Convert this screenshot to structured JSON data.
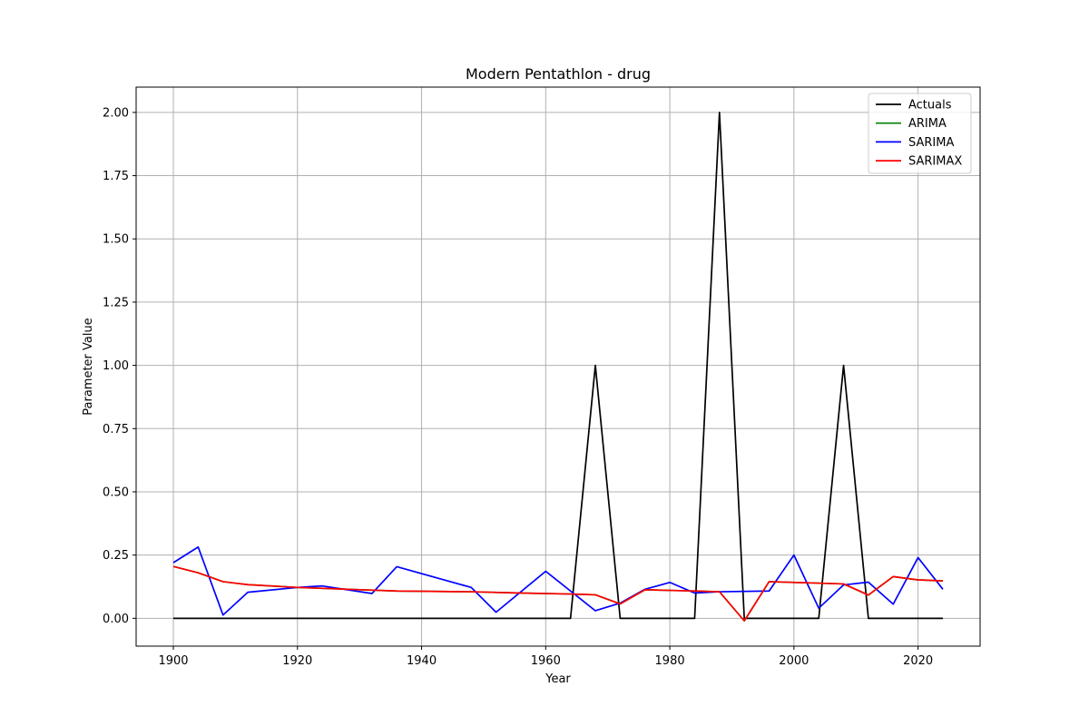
{
  "chart_data": {
    "type": "line",
    "title": "Modern Pentathlon - drug",
    "xlabel": "Year",
    "ylabel": "Parameter Value",
    "xlim": [
      1894,
      2030
    ],
    "ylim": [
      -0.11,
      2.1
    ],
    "xticks": [
      1900,
      1920,
      1940,
      1960,
      1980,
      2000,
      2020
    ],
    "yticks": [
      0.0,
      0.25,
      0.5,
      0.75,
      1.0,
      1.25,
      1.5,
      1.75,
      2.0
    ],
    "xtick_labels": [
      "1900",
      "1920",
      "1940",
      "1960",
      "1980",
      "2000",
      "2020"
    ],
    "ytick_labels": [
      "0.00",
      "0.25",
      "0.50",
      "0.75",
      "1.00",
      "1.25",
      "1.50",
      "1.75",
      "2.00"
    ],
    "grid": true,
    "legend_position": "top-right",
    "series": [
      {
        "name": "Actuals",
        "color": "#000000",
        "x": [
          1900,
          1964,
          1968,
          1972,
          1984,
          1988,
          1992,
          2004,
          2008,
          2012,
          2024
        ],
        "y": [
          0,
          0,
          1,
          0,
          0,
          2,
          0,
          0,
          1,
          0,
          0
        ]
      },
      {
        "name": "ARIMA",
        "color": "#008000",
        "x": [
          1900,
          1904,
          1908,
          1912,
          1920,
          1928,
          1936,
          1948,
          1956,
          1964,
          1968,
          1972,
          1976,
          1984,
          1988,
          1992,
          1996,
          2008,
          2012,
          2016,
          2020,
          2024
        ],
        "y": [
          0.205,
          0.18,
          0.145,
          0.133,
          0.122,
          0.115,
          0.108,
          0.105,
          0.1,
          0.096,
          0.093,
          0.057,
          0.113,
          0.108,
          0.105,
          -0.01,
          0.145,
          0.136,
          0.092,
          0.165,
          0.152,
          0.148
        ]
      },
      {
        "name": "SARIMA",
        "color": "#0000ff",
        "x": [
          1900,
          1904,
          1908,
          1912,
          1920,
          1924,
          1932,
          1936,
          1948,
          1952,
          1960,
          1968,
          1972,
          1976,
          1980,
          1984,
          1988,
          1996,
          2000,
          2004,
          2008,
          2012,
          2016,
          2020,
          2024
        ],
        "y": [
          0.22,
          0.282,
          0.013,
          0.103,
          0.122,
          0.128,
          0.098,
          0.204,
          0.122,
          0.024,
          0.186,
          0.03,
          0.06,
          0.115,
          0.142,
          0.1,
          0.105,
          0.108,
          0.25,
          0.04,
          0.132,
          0.143,
          0.056,
          0.24,
          0.115
        ]
      },
      {
        "name": "SARIMAX",
        "color": "#ff0000",
        "x": [
          1900,
          1904,
          1908,
          1912,
          1920,
          1928,
          1936,
          1948,
          1956,
          1964,
          1968,
          1972,
          1976,
          1984,
          1988,
          1992,
          1996,
          2008,
          2012,
          2016,
          2020,
          2024
        ],
        "y": [
          0.205,
          0.18,
          0.145,
          0.133,
          0.122,
          0.115,
          0.108,
          0.105,
          0.1,
          0.096,
          0.093,
          0.057,
          0.113,
          0.108,
          0.105,
          -0.01,
          0.145,
          0.136,
          0.092,
          0.165,
          0.152,
          0.148
        ]
      }
    ]
  }
}
